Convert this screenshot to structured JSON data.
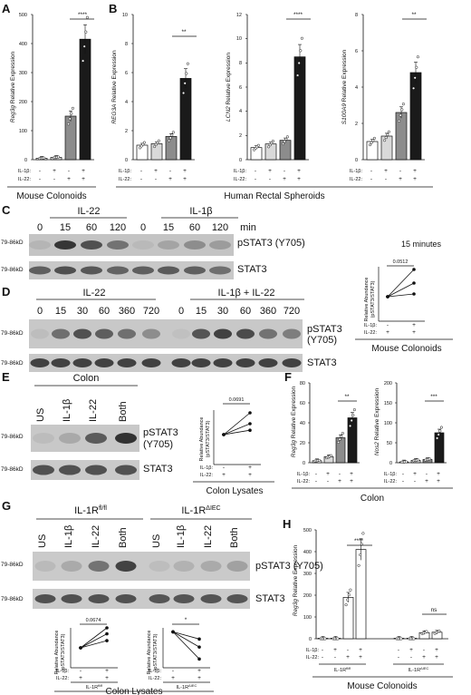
{
  "panels": {
    "A": {
      "letter": "A",
      "ylabel_gene": "Reg3g",
      "ylabel_suffix": " Relative Expression",
      "yticks": [
        "0",
        "100",
        "200",
        "300",
        "400",
        "500"
      ],
      "row1_label": "IL-1β:",
      "row1": [
        "-",
        "+",
        "-",
        "+"
      ],
      "row2_label": "IL-22:",
      "row2": [
        "-",
        "-",
        "+",
        "+"
      ],
      "sig": "****",
      "caption": "Mouse Colonoids"
    },
    "B": {
      "letter": "B",
      "caption": "Human Rectal Spheroids",
      "row1_label": "IL-1β:",
      "row1": [
        "-",
        "+",
        "-",
        "+"
      ],
      "row2_label": "IL-22:",
      "row2": [
        "-",
        "-",
        "+",
        "+"
      ],
      "charts": [
        {
          "gene": "REG3A",
          "suffix": " Relative Expression",
          "yticks": [
            "0",
            "2",
            "4",
            "6",
            "8",
            "10"
          ],
          "sig": "**"
        },
        {
          "gene": "LCN2",
          "suffix": " Relative Expression",
          "yticks": [
            "0",
            "2",
            "4",
            "6",
            "8",
            "10",
            "12"
          ],
          "sig": "****"
        },
        {
          "gene": "S100A9",
          "suffix": " Relative Expression",
          "yticks": [
            "0",
            "2",
            "4",
            "6",
            "8"
          ],
          "sig": "**"
        }
      ]
    },
    "C": {
      "letter": "C",
      "group1": "IL-22",
      "group2": "IL-1β",
      "lanes": [
        "0",
        "15",
        "60",
        "120",
        "0",
        "15",
        "60",
        "120"
      ],
      "unit": "min",
      "mw1": "79-86kD",
      "mw2": "79-86kD",
      "band1": "pSTAT3 (Y705)",
      "band2": "STAT3",
      "inset_title": "15 minutes",
      "inset_p": "0.0512",
      "inset_ylabel1": "Relative Abundance",
      "inset_ylabel2": "(pSTAT3/STAT3)",
      "inset_row1_label": "IL-1β:",
      "inset_row1": [
        "-",
        "+"
      ],
      "inset_row2_label": "IL-22:",
      "inset_row2": [
        "+",
        "+"
      ],
      "inset_caption": "Mouse Colonoids"
    },
    "D": {
      "letter": "D",
      "group1": "IL-22",
      "group2": "IL-1β + IL-22",
      "lanes": [
        "0",
        "15",
        "30",
        "60",
        "360",
        "720",
        "0",
        "15",
        "30",
        "60",
        "360",
        "720"
      ],
      "mw1": "79-86kD",
      "mw2": "79-86kD",
      "band1a": "pSTAT3",
      "band1b": "(Y705)",
      "band2": "STAT3"
    },
    "E": {
      "letter": "E",
      "group": "Colon",
      "lanes": [
        "US",
        "IL-1β",
        "IL-22",
        "Both"
      ],
      "mw1": "79-86kD",
      "mw2": "79-86kD",
      "band1a": "pSTAT3",
      "band1b": "(Y705)",
      "band2": "STAT3",
      "inset_p": "0.0691",
      "inset_ylabel1": "Relative Abundance",
      "inset_ylabel2": "(pSTAT3/STAT3)",
      "inset_row1_label": "IL-1β:",
      "inset_row1": [
        "-",
        "+"
      ],
      "inset_row2_label": "IL-22:",
      "inset_row2": [
        "+",
        "+"
      ],
      "inset_caption": "Colon Lysates"
    },
    "F": {
      "letter": "F",
      "caption": "Colon",
      "row1_label": "IL-1β:",
      "row1": [
        "-",
        "+",
        "-",
        "+"
      ],
      "row2_label": "IL-22:",
      "row2": [
        "-",
        "-",
        "+",
        "+"
      ],
      "charts": [
        {
          "gene": "Reg3g",
          "suffix": " Relative Expression",
          "yticks": [
            "0",
            "20",
            "40",
            "60",
            "80"
          ],
          "sig": "**"
        },
        {
          "gene": "Nos2",
          "suffix": " Relative Expression",
          "yticks": [
            "0",
            "50",
            "100",
            "150",
            "200"
          ],
          "sig": "***"
        }
      ]
    },
    "G": {
      "letter": "G",
      "group1_base": "IL-1R",
      "group1_sup": "fl/fl",
      "group2_base": "IL-1R",
      "group2_sup": "ΔIEC",
      "lanes": [
        "US",
        "IL-1β",
        "IL-22",
        "Both",
        "US",
        "IL-1β",
        "IL-22",
        "Both"
      ],
      "mw1": "79-86kD",
      "mw2": "79-86kD",
      "band1": "pSTAT3 (Y705)",
      "band2": "STAT3",
      "inset1_p": "0.0674",
      "inset2_sig": "*",
      "inset_ylabel1": "Relative Abundance",
      "inset_ylabel2": "(pSTAT3/STAT3)",
      "inset_row1_label": "IL-1β:",
      "inset_row1": [
        "-",
        "+"
      ],
      "inset_row2_label": "IL-22:",
      "inset_row2": [
        "+",
        "+"
      ],
      "inset1_geno_base": "IL-1R",
      "inset1_geno_sup": "fl/fl",
      "inset2_geno_base": "IL-1R",
      "inset2_geno_sup": "ΔIEC",
      "caption": "Colon Lysates"
    },
    "H": {
      "letter": "H",
      "ylabel_gene": "Reg3g",
      "ylabel_suffix": " Relative Expression",
      "yticks": [
        "0",
        "100",
        "200",
        "300",
        "400",
        "500"
      ],
      "row1_label": "IL-1β:",
      "row1": [
        "-",
        "+",
        "-",
        "+",
        "-",
        "+",
        "-",
        "+"
      ],
      "row2_label": "IL-22:",
      "row2": [
        "-",
        "-",
        "+",
        "+",
        "-",
        "-",
        "+",
        "+"
      ],
      "sig1": "****",
      "sig2": "ns",
      "geno1_base": "IL-1R",
      "geno1_sup": "fl/fl",
      "geno2_base": "IL-1R",
      "geno2_sup": "ΔIEC",
      "caption": "Mouse Colonoids"
    }
  },
  "chart_data": [
    {
      "panel": "A",
      "type": "bar",
      "categories": [
        "-/-",
        "+/-",
        "-/+",
        "+/+"
      ],
      "values": [
        5,
        8,
        150,
        415
      ],
      "ylim": [
        0,
        500
      ]
    },
    {
      "panel": "B",
      "type": "bar",
      "ylabel": "REG3A Relative Expression",
      "categories": [
        "-/-",
        "+/-",
        "-/+",
        "+/+"
      ],
      "values": [
        1,
        1.1,
        1.6,
        5.6
      ],
      "ylim": [
        0,
        10
      ]
    },
    {
      "panel": "B",
      "type": "bar",
      "ylabel": "LCN2 Relative Expression",
      "categories": [
        "-/-",
        "+/-",
        "-/+",
        "+/+"
      ],
      "values": [
        1,
        1.3,
        1.6,
        8.5
      ],
      "ylim": [
        0,
        12
      ]
    },
    {
      "panel": "B",
      "type": "bar",
      "ylabel": "S100A9 Relative Expression",
      "categories": [
        "-/-",
        "+/-",
        "-/+",
        "+/+"
      ],
      "values": [
        1,
        1.3,
        2.6,
        4.8
      ],
      "ylim": [
        0,
        8
      ]
    },
    {
      "panel": "F",
      "type": "bar",
      "ylabel": "Reg3g Relative Expression",
      "categories": [
        "-/-",
        "+/-",
        "-/+",
        "+/+"
      ],
      "values": [
        2,
        6,
        25,
        45
      ],
      "ylim": [
        0,
        80
      ]
    },
    {
      "panel": "F",
      "type": "bar",
      "ylabel": "Nos2 Relative Expression",
      "categories": [
        "-/-",
        "+/-",
        "-/+",
        "+/+"
      ],
      "values": [
        2,
        6,
        8,
        75
      ],
      "ylim": [
        0,
        200
      ]
    },
    {
      "panel": "H",
      "type": "bar",
      "ylabel": "Reg3g Relative Expression",
      "categories": [
        "fl/fl -/-",
        "fl/fl +/-",
        "fl/fl -/+",
        "fl/fl +/+",
        "ΔIEC -/-",
        "ΔIEC +/-",
        "ΔIEC -/+",
        "ΔIEC +/+"
      ],
      "values": [
        0,
        0,
        190,
        410,
        0,
        0,
        28,
        30
      ],
      "ylim": [
        0,
        500
      ]
    }
  ]
}
